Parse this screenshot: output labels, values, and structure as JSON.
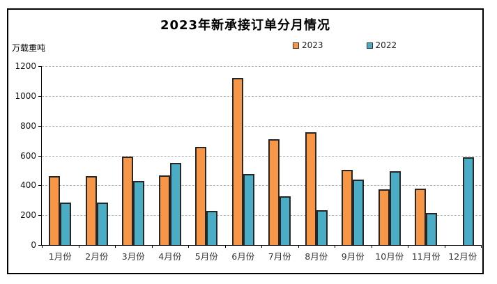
{
  "title": "2023年新承接订单分月情况",
  "y_axis_unit": "万载重吨",
  "legend": {
    "item_2023": "2023",
    "item_2022": "2022"
  },
  "colors": {
    "series_2023": "#F79646",
    "series_2022": "#4BACC6",
    "bar_border": "#262626",
    "gridline": "#b3b3b3",
    "axis": "#000000"
  },
  "chart_data": {
    "type": "bar",
    "title": "2023年新承接订单分月情况",
    "ylabel": "万载重吨",
    "xlabel": "",
    "categories": [
      "1月份",
      "2月份",
      "3月份",
      "4月份",
      "5月份",
      "6月份",
      "7月份",
      "8月份",
      "9月份",
      "10月份",
      "11月份",
      "12月份"
    ],
    "series": [
      {
        "name": "2023",
        "color": "#F79646",
        "values": [
          460,
          464,
          595,
          468,
          658,
          1120,
          710,
          755,
          505,
          372,
          377,
          null
        ]
      },
      {
        "name": "2022",
        "color": "#4BACC6",
        "values": [
          286,
          286,
          430,
          550,
          228,
          477,
          328,
          232,
          440,
          494,
          217,
          590
        ]
      }
    ],
    "ylim": [
      0,
      1200
    ],
    "yticks": [
      0,
      200,
      400,
      600,
      800,
      1000,
      1200
    ],
    "grid": true,
    "grid_style": "dashed",
    "legend_position": "top"
  }
}
